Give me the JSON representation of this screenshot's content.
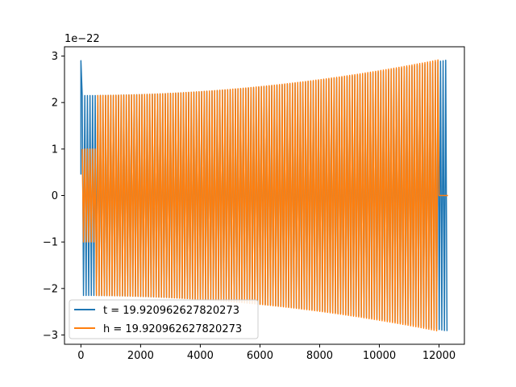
{
  "chart_data": {
    "type": "line",
    "title": "",
    "xlabel": "",
    "ylabel": "",
    "y_offset_label": "1e−22",
    "xlim": [
      -550,
      12850
    ],
    "ylim": [
      -3.2,
      3.2
    ],
    "x_ticks": [
      0,
      2000,
      4000,
      6000,
      8000,
      10000,
      12000
    ],
    "x_tick_labels": [
      "0",
      "2000",
      "4000",
      "6000",
      "8000",
      "10000",
      "12000"
    ],
    "y_ticks": [
      -3,
      -2,
      -1,
      0,
      1,
      2,
      3
    ],
    "y_tick_labels": [
      "−3",
      "−2",
      "−1",
      "0",
      "1",
      "2",
      "3"
    ],
    "grid": false,
    "legend_position": "lower-left",
    "series": [
      {
        "name": "t = 19.920962627820273",
        "color": "#1f77b4",
        "envelope": {
          "start_x": 0,
          "end_x": 12300,
          "start_amplitude": 2.15,
          "end_amplitude": 2.92,
          "initial_spike_x": 0,
          "initial_spike_value": 2.9,
          "cycle_length": 87
        }
      },
      {
        "name": "h = 19.920962627820273",
        "color": "#ff7f0e",
        "envelope": {
          "start_x": 0,
          "end_x": 12000,
          "start_amplitude": 2.15,
          "end_amplitude": 2.92,
          "early_amplitude": 1.0,
          "early_end_x": 500,
          "flat_tail_start_x": 12000,
          "flat_tail_end_x": 12300,
          "cycle_length": 87
        }
      }
    ]
  }
}
